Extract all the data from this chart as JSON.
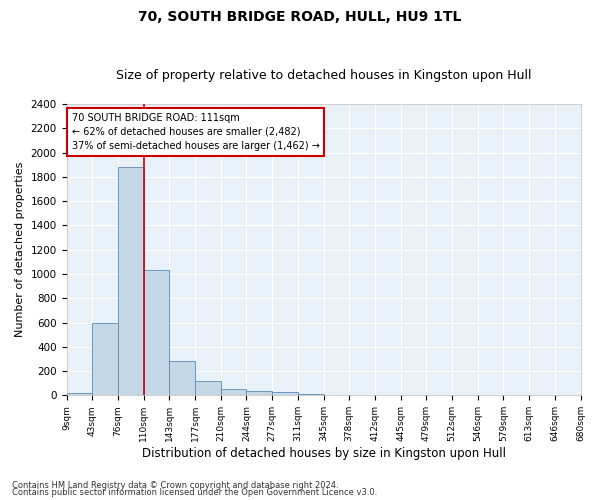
{
  "title1": "70, SOUTH BRIDGE ROAD, HULL, HU9 1TL",
  "title2": "Size of property relative to detached houses in Kingston upon Hull",
  "xlabel": "Distribution of detached houses by size in Kingston upon Hull",
  "ylabel": "Number of detached properties",
  "footer1": "Contains HM Land Registry data © Crown copyright and database right 2024.",
  "footer2": "Contains public sector information licensed under the Open Government Licence v3.0.",
  "bin_labels": [
    "9sqm",
    "43sqm",
    "76sqm",
    "110sqm",
    "143sqm",
    "177sqm",
    "210sqm",
    "244sqm",
    "277sqm",
    "311sqm",
    "345sqm",
    "378sqm",
    "412sqm",
    "445sqm",
    "479sqm",
    "512sqm",
    "546sqm",
    "579sqm",
    "613sqm",
    "646sqm",
    "680sqm"
  ],
  "bar_values": [
    20,
    600,
    1880,
    1030,
    285,
    115,
    50,
    38,
    25,
    15,
    0,
    0,
    0,
    0,
    0,
    0,
    0,
    0,
    0,
    0
  ],
  "bar_color": "#c5d8e8",
  "bar_edge_color": "#5a8ab5",
  "red_line_x": 3,
  "red_line_color": "#cc0000",
  "annotation_title": "70 SOUTH BRIDGE ROAD: 111sqm",
  "annotation_line1": "← 62% of detached houses are smaller (2,482)",
  "annotation_line2": "37% of semi-detached houses are larger (1,462) →",
  "ylim": [
    0,
    2400
  ],
  "yticks": [
    0,
    200,
    400,
    600,
    800,
    1000,
    1200,
    1400,
    1600,
    1800,
    2000,
    2200,
    2400
  ],
  "fig_background": "#ffffff",
  "ax_background": "#e8f0f8",
  "grid_color": "#ffffff",
  "title1_fontsize": 10,
  "title2_fontsize": 9,
  "xlabel_fontsize": 8.5,
  "ylabel_fontsize": 8,
  "footer_fontsize": 6
}
